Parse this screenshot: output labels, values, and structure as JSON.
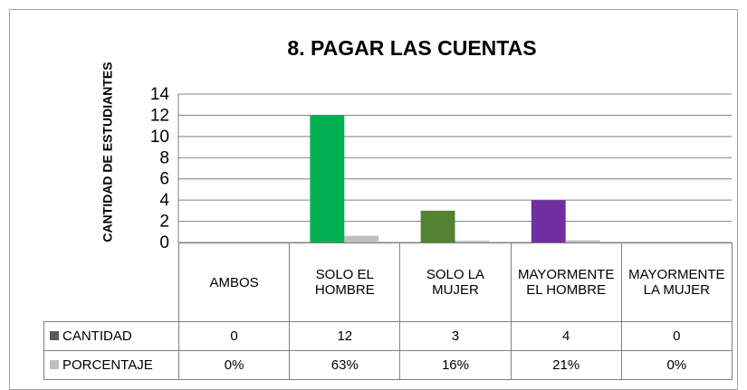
{
  "chart_data": {
    "type": "bar",
    "title": "8. PAGAR LAS CUENTAS",
    "y_label": "CANTIDAD DE ESTUDIANTES",
    "categories": [
      "AMBOS",
      "SOLO EL HOMBRE",
      "SOLO LA MUJER",
      "MAYORMENTE EL HOMBRE",
      "MAYORMENTE LA MUJER"
    ],
    "series": [
      {
        "name": "CANTIDAD",
        "color": "#595959",
        "colors": [
          "#00b050",
          "#00b050",
          "#548235",
          "#7030a0",
          "#7030a0"
        ],
        "values": [
          0,
          12,
          3,
          4,
          0
        ]
      },
      {
        "name": "PORCENTAJE",
        "color": "#bfbfbf",
        "values": [
          0,
          0.63,
          0.16,
          0.21,
          0
        ],
        "value_labels": [
          "0%",
          "63%",
          "16%",
          "21%",
          "0%"
        ]
      }
    ],
    "ylim": [
      0,
      14
    ],
    "yticks": [
      0,
      2,
      4,
      6,
      8,
      10,
      12,
      14
    ],
    "grid": true,
    "legend": "table"
  }
}
